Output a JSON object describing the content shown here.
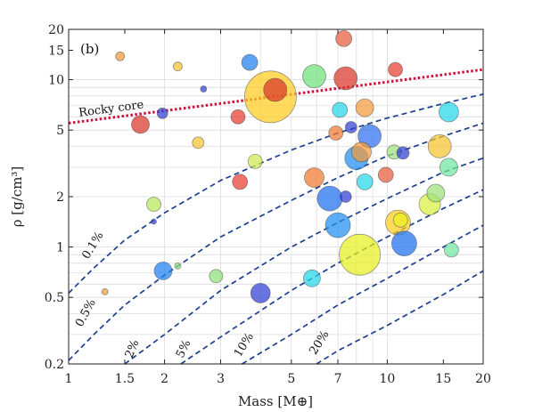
{
  "chart_data": {
    "type": "scatter",
    "panel_label": "(b)",
    "xlabel": "Mass [M⊕]",
    "ylabel": "ρ [g/cm³]",
    "xscale": "log",
    "yscale": "log",
    "xlim": [
      1,
      20
    ],
    "ylim": [
      0.2,
      20
    ],
    "grid": true,
    "xticks": [
      {
        "value": 1,
        "label": "1"
      },
      {
        "value": 1.5,
        "label": "1.5"
      },
      {
        "value": 2,
        "label": "2"
      },
      {
        "value": 3,
        "label": "3"
      },
      {
        "value": 5,
        "label": "5"
      },
      {
        "value": 7,
        "label": "7"
      },
      {
        "value": 10,
        "label": "10"
      },
      {
        "value": 15,
        "label": "15"
      },
      {
        "value": 20,
        "label": "20"
      }
    ],
    "yticks": [
      {
        "value": 0.2,
        "label": "0.2"
      },
      {
        "value": 0.5,
        "label": "0.5"
      },
      {
        "value": 1,
        "label": "1"
      },
      {
        "value": 2,
        "label": "2"
      },
      {
        "value": 5,
        "label": "5"
      },
      {
        "value": 10,
        "label": "10"
      },
      {
        "value": 15,
        "label": "15"
      },
      {
        "value": 20,
        "label": "20"
      }
    ],
    "rocky_core": {
      "label": "Rocky core",
      "color": "#d0103a",
      "points": [
        [
          1,
          5.5
        ],
        [
          20,
          11.5
        ]
      ]
    },
    "envelope_curves": {
      "color": "#1d3f8f",
      "curves": [
        {
          "label": "0.1%",
          "points": [
            [
              1,
              0.53
            ],
            [
              1.2,
              0.75
            ],
            [
              1.5,
              1.1
            ],
            [
              2,
              1.6
            ],
            [
              3,
              2.5
            ],
            [
              5,
              3.8
            ],
            [
              7,
              4.8
            ],
            [
              10,
              5.9
            ],
            [
              15,
              7.2
            ],
            [
              20,
              8.2
            ]
          ]
        },
        {
          "label": "0.5%",
          "points": [
            [
              1,
              0.21
            ],
            [
              1.2,
              0.3
            ],
            [
              1.5,
              0.45
            ],
            [
              2,
              0.68
            ],
            [
              3,
              1.15
            ],
            [
              5,
              1.9
            ],
            [
              7,
              2.6
            ],
            [
              10,
              3.5
            ],
            [
              15,
              4.6
            ],
            [
              20,
              5.5
            ]
          ]
        },
        {
          "label": "2%",
          "points": [
            [
              1.5,
              0.2
            ],
            [
              2,
              0.3
            ],
            [
              3,
              0.55
            ],
            [
              5,
              1.0
            ],
            [
              7,
              1.4
            ],
            [
              10,
              1.95
            ],
            [
              15,
              2.8
            ],
            [
              20,
              3.4
            ]
          ]
        },
        {
          "label": "5%",
          "points": [
            [
              2.25,
              0.2
            ],
            [
              3,
              0.29
            ],
            [
              5,
              0.55
            ],
            [
              7,
              0.8
            ],
            [
              10,
              1.15
            ],
            [
              15,
              1.7
            ],
            [
              20,
              2.2
            ]
          ]
        },
        {
          "label": "10%",
          "points": [
            [
              3.5,
              0.2
            ],
            [
              5,
              0.3
            ],
            [
              7,
              0.45
            ],
            [
              10,
              0.65
            ],
            [
              15,
              1.0
            ],
            [
              20,
              1.35
            ]
          ]
        },
        {
          "label": "20%",
          "points": [
            [
              6,
              0.2
            ],
            [
              7,
              0.24
            ],
            [
              10,
              0.34
            ],
            [
              15,
              0.52
            ],
            [
              20,
              0.72
            ]
          ]
        }
      ]
    },
    "points": [
      {
        "x": 1.45,
        "y": 13.8,
        "r": 5,
        "color": "#f29a3c"
      },
      {
        "x": 1.97,
        "y": 6.3,
        "r": 6,
        "color": "#2f3fd6"
      },
      {
        "x": 1.68,
        "y": 5.4,
        "r": 10,
        "color": "#d9362b"
      },
      {
        "x": 2.2,
        "y": 12.0,
        "r": 5,
        "color": "#f6c42f"
      },
      {
        "x": 2.65,
        "y": 8.8,
        "r": 3.5,
        "color": "#2f3fd6"
      },
      {
        "x": 2.55,
        "y": 4.2,
        "r": 6.5,
        "color": "#f6c42f"
      },
      {
        "x": 3.7,
        "y": 12.7,
        "r": 9,
        "color": "#1f7ff0"
      },
      {
        "x": 3.4,
        "y": 6.0,
        "r": 8,
        "color": "#e83b2f"
      },
      {
        "x": 4.3,
        "y": 7.9,
        "r": 29,
        "color": "#ffcc1f"
      },
      {
        "x": 4.45,
        "y": 8.7,
        "r": 13,
        "color": "#d9362b"
      },
      {
        "x": 3.85,
        "y": 3.25,
        "r": 8,
        "color": "#cdea4f"
      },
      {
        "x": 3.45,
        "y": 2.45,
        "r": 8.5,
        "color": "#e83b2f"
      },
      {
        "x": 1.85,
        "y": 1.8,
        "r": 8,
        "color": "#b8e85a"
      },
      {
        "x": 1.85,
        "y": 1.42,
        "r": 3,
        "color": "#2f3fd6"
      },
      {
        "x": 1.98,
        "y": 0.72,
        "r": 10,
        "color": "#1f7ff0"
      },
      {
        "x": 2.2,
        "y": 0.77,
        "r": 3.5,
        "color": "#8ee07a"
      },
      {
        "x": 2.9,
        "y": 0.67,
        "r": 7.5,
        "color": "#8ee07a"
      },
      {
        "x": 4.0,
        "y": 0.53,
        "r": 11,
        "color": "#2f3fd6"
      },
      {
        "x": 1.3,
        "y": 0.54,
        "r": 3.5,
        "color": "#f29a3c"
      },
      {
        "x": 5.9,
        "y": 10.5,
        "r": 13,
        "color": "#6fe07a"
      },
      {
        "x": 7.3,
        "y": 17.6,
        "r": 9,
        "color": "#e85a3c"
      },
      {
        "x": 7.4,
        "y": 10.2,
        "r": 13,
        "color": "#d9362b"
      },
      {
        "x": 7.1,
        "y": 6.6,
        "r": 8.5,
        "color": "#26d5e8"
      },
      {
        "x": 8.5,
        "y": 6.8,
        "r": 10,
        "color": "#f29a3c"
      },
      {
        "x": 7.7,
        "y": 5.2,
        "r": 6.5,
        "color": "#2f3fd6"
      },
      {
        "x": 6.9,
        "y": 4.8,
        "r": 8,
        "color": "#f07a2f"
      },
      {
        "x": 8.8,
        "y": 4.6,
        "r": 13,
        "color": "#2f6ff0"
      },
      {
        "x": 8.0,
        "y": 3.4,
        "r": 13,
        "color": "#1f8ff0"
      },
      {
        "x": 8.3,
        "y": 3.7,
        "r": 11,
        "color": "#f29a3c"
      },
      {
        "x": 10.6,
        "y": 11.5,
        "r": 8,
        "color": "#e83b2f"
      },
      {
        "x": 10.5,
        "y": 3.7,
        "r": 8,
        "color": "#9ee07a"
      },
      {
        "x": 11.2,
        "y": 3.65,
        "r": 7,
        "color": "#2f3fd6"
      },
      {
        "x": 15.6,
        "y": 6.4,
        "r": 11,
        "color": "#26d5e8"
      },
      {
        "x": 14.6,
        "y": 4.0,
        "r": 13,
        "color": "#f6c42f"
      },
      {
        "x": 15.6,
        "y": 3.0,
        "r": 10,
        "color": "#6fe8a0"
      },
      {
        "x": 5.9,
        "y": 2.6,
        "r": 11,
        "color": "#f07a2f"
      },
      {
        "x": 6.6,
        "y": 1.95,
        "r": 14,
        "color": "#1f6ff0"
      },
      {
        "x": 7.4,
        "y": 2.0,
        "r": 6.5,
        "color": "#2f3fd6"
      },
      {
        "x": 8.5,
        "y": 2.45,
        "r": 9,
        "color": "#26d5e8"
      },
      {
        "x": 9.9,
        "y": 2.7,
        "r": 8.5,
        "color": "#e85a3c"
      },
      {
        "x": 7.0,
        "y": 1.35,
        "r": 14,
        "color": "#1f8ff0"
      },
      {
        "x": 8.2,
        "y": 0.9,
        "r": 23,
        "color": "#e6f020"
      },
      {
        "x": 10.8,
        "y": 1.4,
        "r": 14,
        "color": "#ffcc1f"
      },
      {
        "x": 11.0,
        "y": 1.45,
        "r": 8,
        "color": "#e6f020"
      },
      {
        "x": 11.3,
        "y": 1.05,
        "r": 14,
        "color": "#1f6ff0"
      },
      {
        "x": 13.6,
        "y": 1.8,
        "r": 12,
        "color": "#d9f040"
      },
      {
        "x": 14.2,
        "y": 2.1,
        "r": 10,
        "color": "#9ee07a"
      },
      {
        "x": 15.9,
        "y": 0.96,
        "r": 8,
        "color": "#6fe8a0"
      },
      {
        "x": 5.8,
        "y": 0.65,
        "r": 9.5,
        "color": "#26d5e8"
      }
    ]
  }
}
